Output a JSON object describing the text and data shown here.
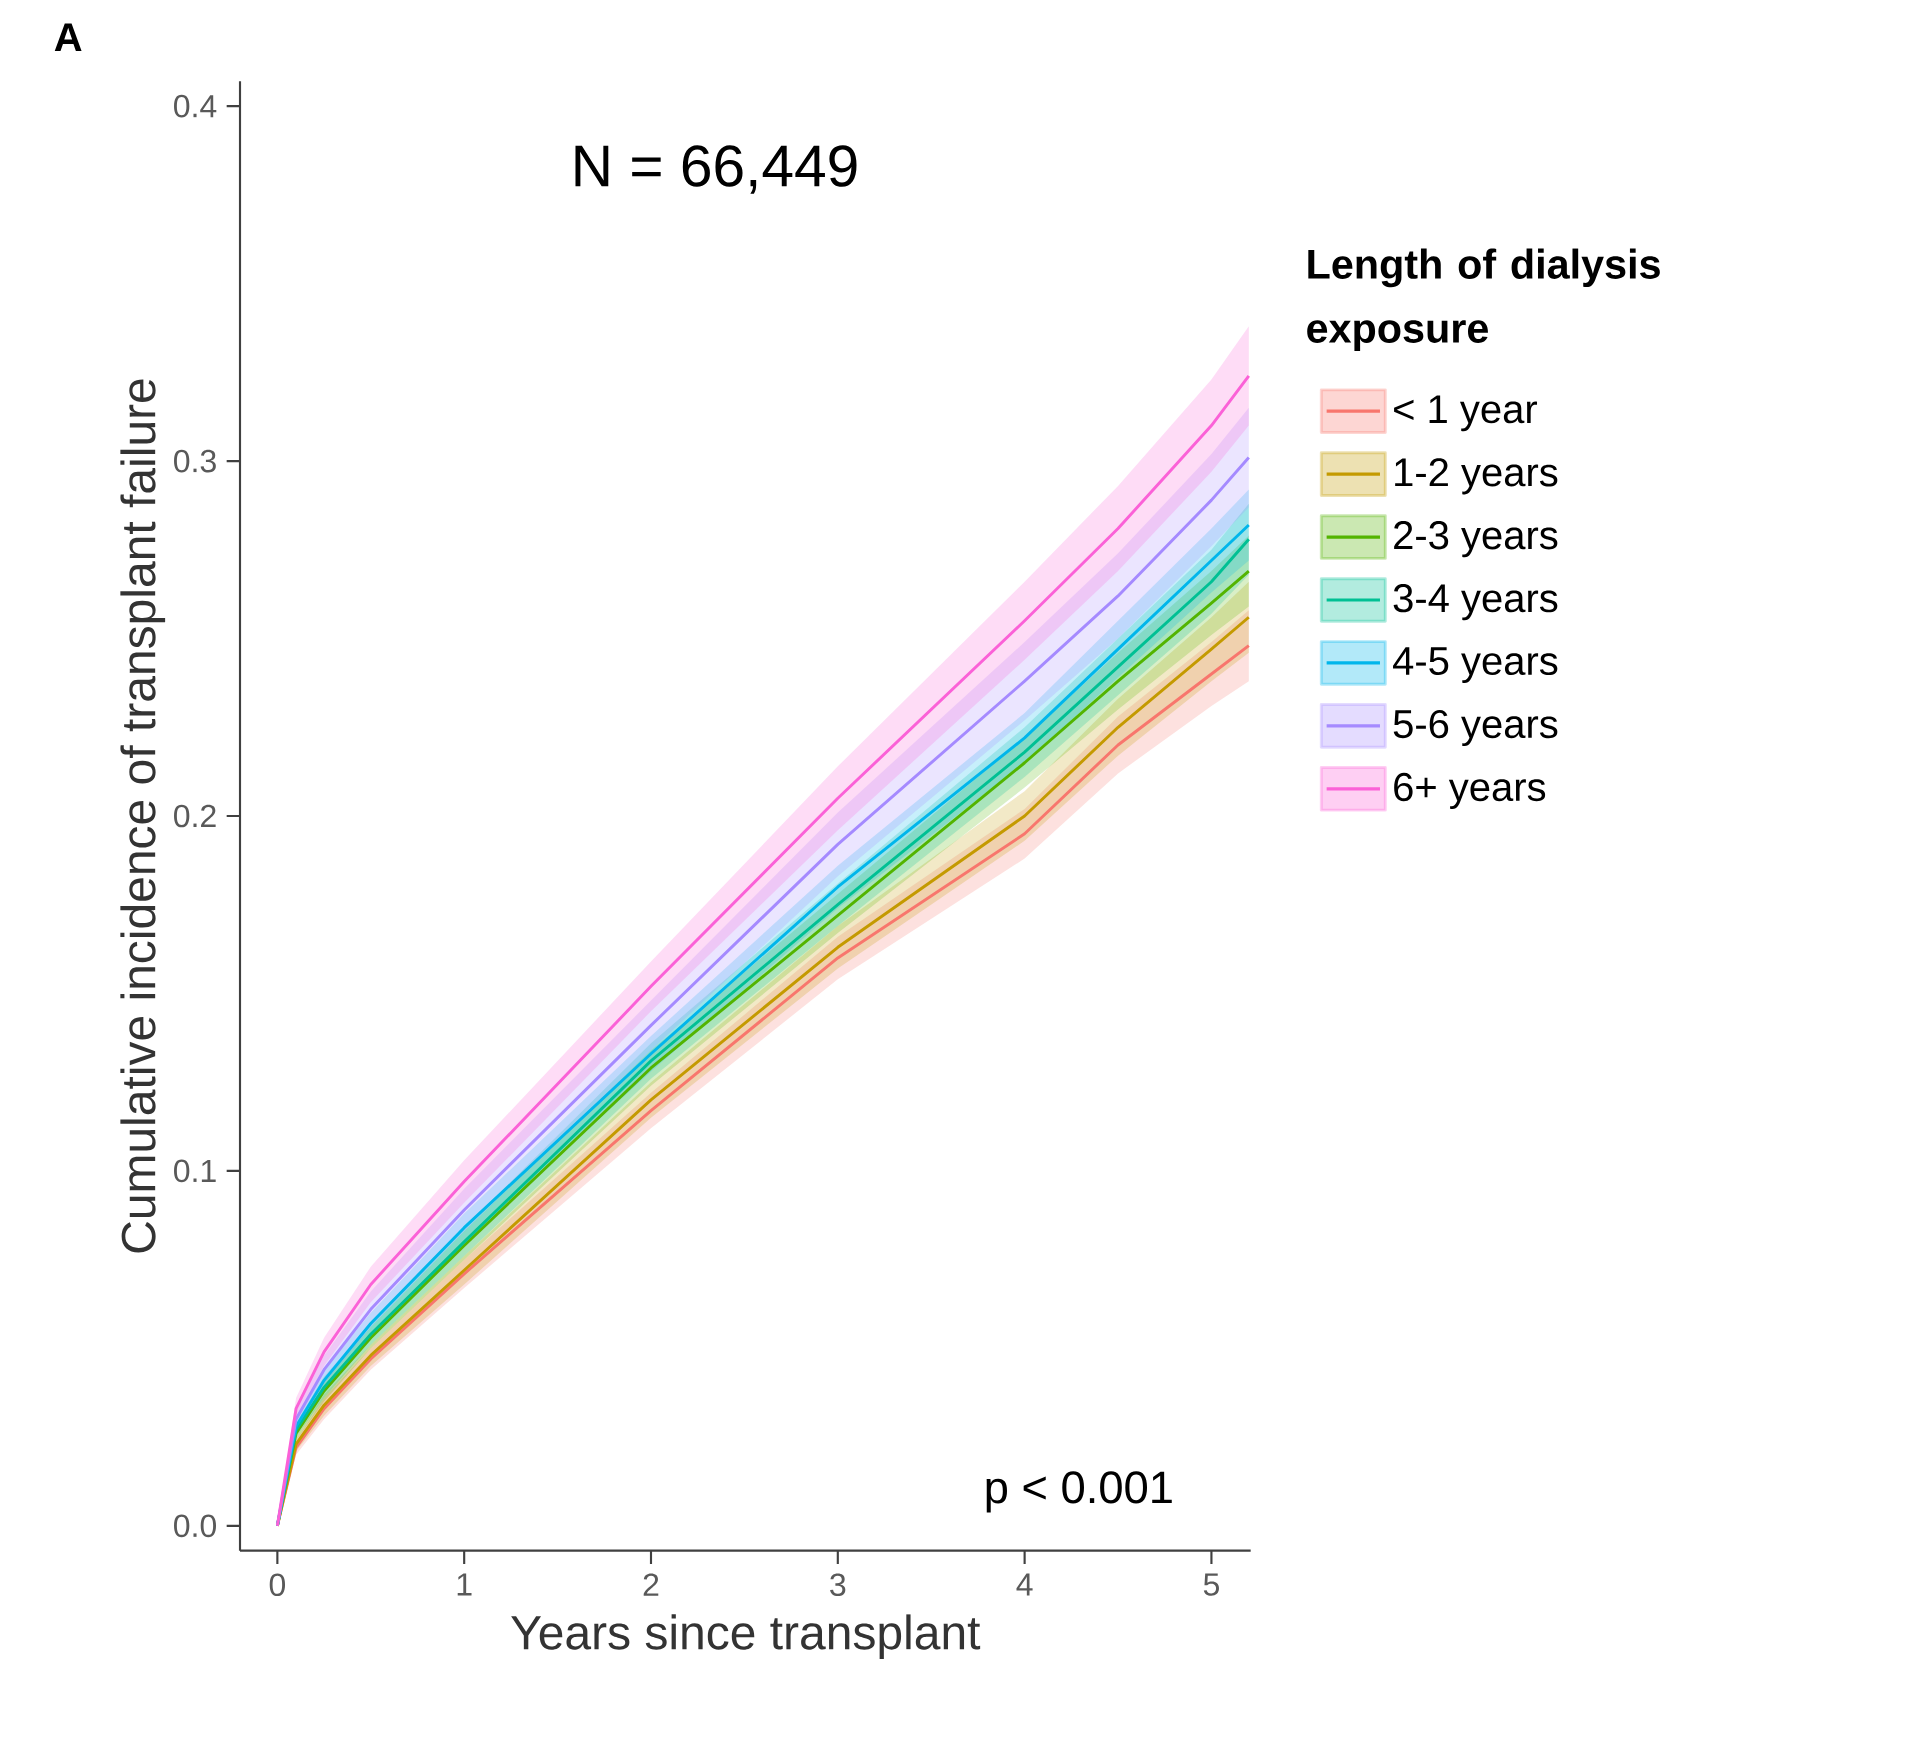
{
  "chart_data": {
    "type": "line",
    "xlabel": "Years since transplant",
    "ylabel": "Cumulative incidence of transplant failure",
    "legend_title": "Length of dialysis exposure",
    "annotations": [
      "A",
      "N = 66,449",
      "p < 0.001"
    ],
    "x": [
      0,
      0.1,
      0.25,
      0.5,
      1,
      2,
      3,
      4,
      4.5,
      5,
      5.2
    ],
    "xlim": [
      -0.2,
      5.21
    ],
    "xticks": [
      0,
      1,
      2,
      3,
      4,
      5
    ],
    "ylim": [
      -0.007,
      0.407
    ],
    "yticks": [
      {
        "value": 0,
        "label": "0.0"
      },
      0.1,
      0.2,
      0.3,
      0.4
    ],
    "legend": "right",
    "grid": false,
    "marker": "none",
    "series": [
      {
        "name": "< 1 year",
        "color": "#F8766D",
        "values": [
          0,
          0.022,
          0.033,
          0.047,
          0.071,
          0.117,
          0.16,
          0.195,
          0.22,
          0.24,
          0.248
        ],
        "lower": [
          0,
          0.02,
          0.03,
          0.044,
          0.067,
          0.112,
          0.154,
          0.188,
          0.212,
          0.231,
          0.238
        ],
        "upper": [
          0,
          0.024,
          0.036,
          0.05,
          0.075,
          0.122,
          0.166,
          0.202,
          0.228,
          0.249,
          0.258
        ]
      },
      {
        "name": "1-2 years",
        "color": "#C49A00",
        "values": [
          0,
          0.023,
          0.034,
          0.048,
          0.072,
          0.12,
          0.163,
          0.2,
          0.225,
          0.247,
          0.256
        ],
        "lower": [
          0,
          0.021,
          0.031,
          0.045,
          0.068,
          0.115,
          0.157,
          0.193,
          0.217,
          0.238,
          0.246
        ],
        "upper": [
          0,
          0.025,
          0.037,
          0.051,
          0.076,
          0.125,
          0.169,
          0.207,
          0.233,
          0.256,
          0.266
        ]
      },
      {
        "name": "2-3 years",
        "color": "#53B400",
        "values": [
          0,
          0.026,
          0.038,
          0.053,
          0.079,
          0.129,
          0.172,
          0.215,
          0.238,
          0.26,
          0.269
        ],
        "lower": [
          0,
          0.024,
          0.035,
          0.05,
          0.075,
          0.124,
          0.167,
          0.208,
          0.23,
          0.251,
          0.259
        ],
        "upper": [
          0,
          0.028,
          0.041,
          0.056,
          0.083,
          0.134,
          0.178,
          0.222,
          0.246,
          0.269,
          0.279
        ]
      },
      {
        "name": "3-4 years",
        "color": "#00C094",
        "values": [
          0,
          0.027,
          0.039,
          0.054,
          0.08,
          0.131,
          0.175,
          0.218,
          0.242,
          0.266,
          0.278
        ],
        "lower": [
          0,
          0.025,
          0.036,
          0.051,
          0.076,
          0.126,
          0.169,
          0.211,
          0.234,
          0.257,
          0.268
        ],
        "upper": [
          0,
          0.029,
          0.042,
          0.057,
          0.084,
          0.136,
          0.181,
          0.225,
          0.25,
          0.275,
          0.288
        ]
      },
      {
        "name": "4-5 years",
        "color": "#00B6EB",
        "values": [
          0,
          0.028,
          0.041,
          0.057,
          0.084,
          0.133,
          0.18,
          0.222,
          0.247,
          0.272,
          0.282
        ],
        "lower": [
          0,
          0.026,
          0.038,
          0.054,
          0.08,
          0.128,
          0.174,
          0.215,
          0.239,
          0.263,
          0.272
        ],
        "upper": [
          0,
          0.03,
          0.044,
          0.06,
          0.088,
          0.138,
          0.186,
          0.229,
          0.255,
          0.281,
          0.292
        ]
      },
      {
        "name": "5-6 years",
        "color": "#A58AFF",
        "values": [
          0,
          0.03,
          0.044,
          0.061,
          0.089,
          0.141,
          0.192,
          0.238,
          0.262,
          0.289,
          0.301
        ],
        "lower": [
          0,
          0.027,
          0.04,
          0.056,
          0.083,
          0.134,
          0.183,
          0.227,
          0.25,
          0.276,
          0.287
        ],
        "upper": [
          0,
          0.033,
          0.048,
          0.066,
          0.095,
          0.148,
          0.201,
          0.249,
          0.274,
          0.302,
          0.315
        ]
      },
      {
        "name": "6+ years",
        "color": "#FB61D7",
        "values": [
          0,
          0.033,
          0.049,
          0.068,
          0.097,
          0.152,
          0.205,
          0.255,
          0.281,
          0.31,
          0.324
        ],
        "lower": [
          0,
          0.03,
          0.045,
          0.063,
          0.091,
          0.145,
          0.196,
          0.244,
          0.269,
          0.297,
          0.31
        ],
        "upper": [
          0,
          0.036,
          0.053,
          0.073,
          0.103,
          0.159,
          0.214,
          0.266,
          0.293,
          0.323,
          0.338
        ]
      }
    ]
  }
}
